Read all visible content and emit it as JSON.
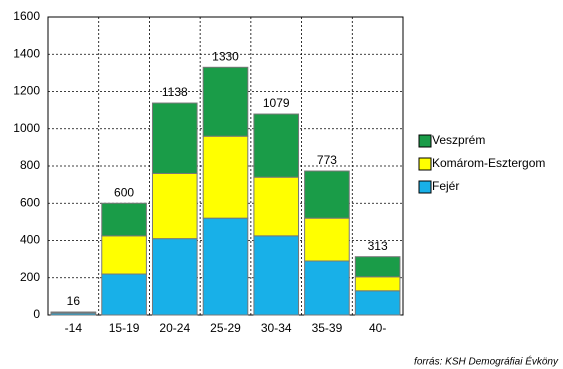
{
  "chart_data": {
    "type": "stacked_bar",
    "categories": [
      "-14",
      "15-19",
      "20-24",
      "25-29",
      "30-34",
      "35-39",
      "40-"
    ],
    "series": [
      {
        "name": "Fejér",
        "color": "#18b0e8",
        "values": [
          10,
          220,
          410,
          520,
          425,
          290,
          130
        ]
      },
      {
        "name": "Komárom-Esztergom",
        "color": "#ffff00",
        "values": [
          3,
          205,
          350,
          440,
          315,
          230,
          75
        ]
      },
      {
        "name": "Veszprém",
        "color": "#1a9c48",
        "values": [
          3,
          175,
          378,
          370,
          339,
          253,
          108
        ]
      }
    ],
    "total_labels": [
      "16",
      "600",
      "1138",
      "1330",
      "1079",
      "773",
      "313"
    ],
    "ylim": [
      0,
      1600
    ],
    "yticks": [
      0,
      200,
      400,
      600,
      800,
      1000,
      1200,
      1400,
      1600
    ],
    "grid": true,
    "source": "forrás: KSH Demográfiai Évköny"
  }
}
